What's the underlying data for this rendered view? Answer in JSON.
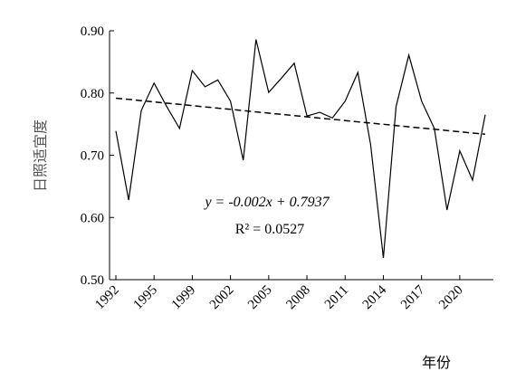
{
  "chart_data": {
    "type": "line",
    "categories": [
      "1992",
      null,
      null,
      "1995",
      null,
      null,
      "1999",
      null,
      null,
      "2002",
      null,
      null,
      "2005",
      null,
      null,
      "2008",
      null,
      null,
      "2011",
      null,
      null,
      "2014",
      null,
      null,
      "2017",
      null,
      null,
      "2020",
      null,
      null
    ],
    "series": [
      {
        "color": "#000000",
        "values": [
          0.739,
          0.628,
          0.772,
          0.816,
          0.778,
          0.743,
          0.836,
          0.81,
          0.821,
          0.787,
          0.692,
          0.886,
          0.801,
          0.824,
          0.848,
          0.763,
          0.769,
          0.76,
          0.787,
          0.833,
          0.717,
          0.535,
          0.778,
          0.861,
          0.787,
          0.743,
          0.612,
          0.707,
          0.66,
          0.765
        ]
      },
      {
        "color": "#000000",
        "dashed": true,
        "values": [
          0.7917,
          0.7897,
          0.7877,
          0.7857,
          0.7837,
          0.7817,
          0.7797,
          0.7777,
          0.7757,
          0.7737,
          0.7717,
          0.7697,
          0.7677,
          0.7657,
          0.7637,
          0.7617,
          0.7597,
          0.7577,
          0.7557,
          0.7537,
          0.7517,
          0.7497,
          0.7477,
          0.7457,
          0.7437,
          0.7417,
          0.7397,
          0.7377,
          0.7357,
          0.7337
        ]
      }
    ],
    "ylim": [
      0.5,
      0.9
    ],
    "yticks": [
      {
        "value": 0.5,
        "label": "0.50"
      },
      {
        "value": 0.6,
        "label": "0.60"
      },
      {
        "value": 0.7,
        "label": "0.70"
      },
      {
        "value": 0.8,
        "label": "0.80"
      },
      {
        "value": 0.9,
        "label": "0.90"
      }
    ],
    "y_label": "日照适宜度",
    "x_label": "年份",
    "annotations": [
      "y = -0.002x + 0.7937",
      "R² = 0.0527"
    ]
  }
}
